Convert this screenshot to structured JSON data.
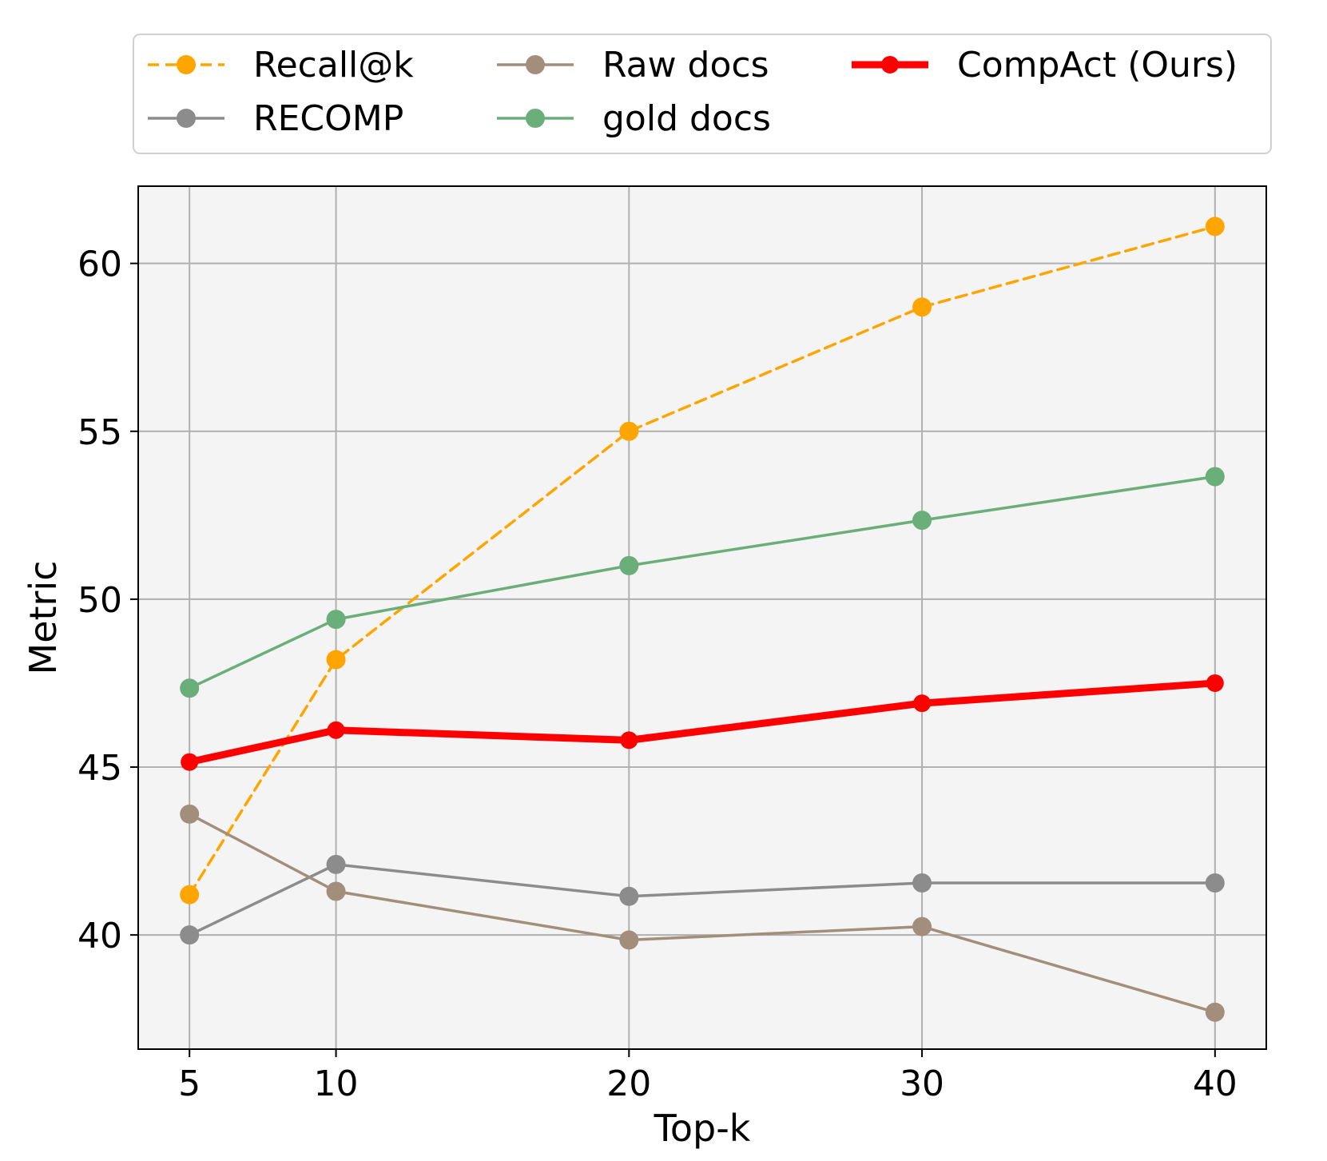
{
  "chart_data": {
    "type": "line",
    "title": "",
    "xlabel": "Top-k",
    "ylabel": "Metric",
    "x": [
      5,
      10,
      20,
      30,
      40
    ],
    "xticks": [
      5,
      10,
      20,
      30,
      40
    ],
    "xtick_labels": [
      "5",
      "10",
      "20",
      "30",
      "40"
    ],
    "xlim": [
      3.25,
      41.75
    ],
    "yticks": [
      40,
      45,
      50,
      55,
      60
    ],
    "ytick_labels": [
      "40",
      "45",
      "50",
      "55",
      "60"
    ],
    "ylim": [
      36.6,
      62.3
    ],
    "grid": true,
    "legend_position": "top",
    "series": [
      {
        "name": "Recall@k",
        "values": [
          41.2,
          48.2,
          55.0,
          58.7,
          61.1
        ],
        "color": "#FFA500",
        "style": "dashed",
        "width": "thin"
      },
      {
        "name": "RECOMP",
        "values": [
          40.0,
          42.1,
          41.15,
          41.55,
          41.55
        ],
        "color": "#8C8C8C",
        "style": "solid",
        "width": "thin"
      },
      {
        "name": "Raw docs",
        "values": [
          43.6,
          41.3,
          39.85,
          40.25,
          37.7
        ],
        "color": "#A38E7B",
        "style": "solid",
        "width": "thin"
      },
      {
        "name": "gold docs",
        "values": [
          47.35,
          49.4,
          51.0,
          52.35,
          53.65
        ],
        "color": "#6AAE79",
        "style": "solid",
        "width": "thin"
      },
      {
        "name": "CompAct (Ours)",
        "values": [
          45.15,
          46.1,
          45.8,
          46.9,
          47.5
        ],
        "color": "#FF0000",
        "style": "solid",
        "width": "thick"
      }
    ]
  }
}
